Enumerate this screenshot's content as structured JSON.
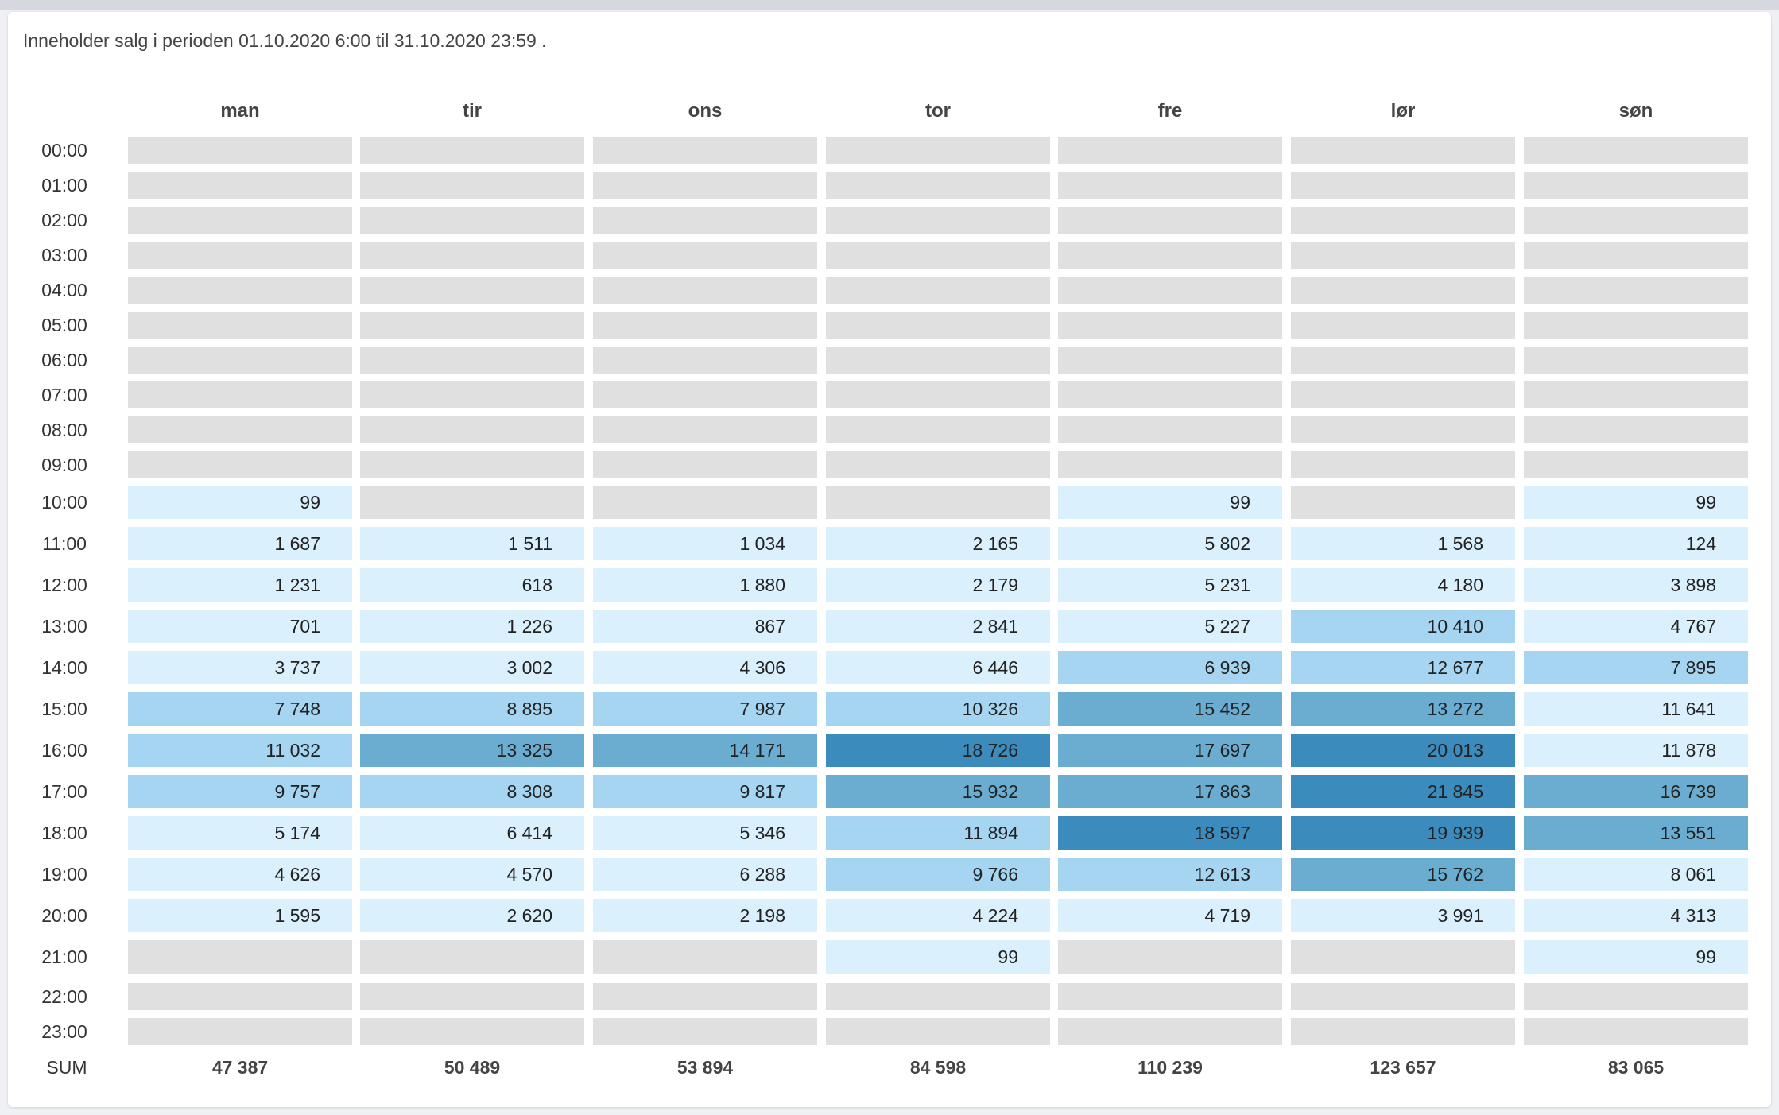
{
  "period_text": "Inneholder salg i perioden 01.10.2020 6:00 til 31.10.2020 23:59 .",
  "colors": {
    "empty": "#e0e0e0",
    "level1": "#daf0fc",
    "level2": "#a6d5f1",
    "level3": "#6bacd1",
    "level4": "#3b8bbc"
  },
  "sum_label": "SUM",
  "chart_data": {
    "type": "heatmap",
    "days": [
      "man",
      "tir",
      "ons",
      "tor",
      "fre",
      "lør",
      "søn"
    ],
    "hours": [
      "00:00",
      "01:00",
      "02:00",
      "03:00",
      "04:00",
      "05:00",
      "06:00",
      "07:00",
      "08:00",
      "09:00",
      "10:00",
      "11:00",
      "12:00",
      "13:00",
      "14:00",
      "15:00",
      "16:00",
      "17:00",
      "18:00",
      "19:00",
      "20:00",
      "21:00",
      "22:00",
      "23:00"
    ],
    "rows": [
      {
        "hour": "00:00",
        "cells": [
          null,
          null,
          null,
          null,
          null,
          null,
          null
        ]
      },
      {
        "hour": "01:00",
        "cells": [
          null,
          null,
          null,
          null,
          null,
          null,
          null
        ]
      },
      {
        "hour": "02:00",
        "cells": [
          null,
          null,
          null,
          null,
          null,
          null,
          null
        ]
      },
      {
        "hour": "03:00",
        "cells": [
          null,
          null,
          null,
          null,
          null,
          null,
          null
        ]
      },
      {
        "hour": "04:00",
        "cells": [
          null,
          null,
          null,
          null,
          null,
          null,
          null
        ]
      },
      {
        "hour": "05:00",
        "cells": [
          null,
          null,
          null,
          null,
          null,
          null,
          null
        ]
      },
      {
        "hour": "06:00",
        "cells": [
          null,
          null,
          null,
          null,
          null,
          null,
          null
        ]
      },
      {
        "hour": "07:00",
        "cells": [
          null,
          null,
          null,
          null,
          null,
          null,
          null
        ]
      },
      {
        "hour": "08:00",
        "cells": [
          null,
          null,
          null,
          null,
          null,
          null,
          null
        ]
      },
      {
        "hour": "09:00",
        "cells": [
          null,
          null,
          null,
          null,
          null,
          null,
          null
        ]
      },
      {
        "hour": "10:00",
        "cells": [
          {
            "text": "99",
            "level": 1
          },
          null,
          null,
          null,
          {
            "text": "99",
            "level": 1
          },
          null,
          {
            "text": "99",
            "level": 1
          }
        ]
      },
      {
        "hour": "11:00",
        "cells": [
          {
            "text": "1 687",
            "level": 1
          },
          {
            "text": "1 511",
            "level": 1
          },
          {
            "text": "1 034",
            "level": 1
          },
          {
            "text": "2 165",
            "level": 1
          },
          {
            "text": "5 802",
            "level": 1
          },
          {
            "text": "1 568",
            "level": 1
          },
          {
            "text": "124",
            "level": 1
          }
        ]
      },
      {
        "hour": "12:00",
        "cells": [
          {
            "text": "1 231",
            "level": 1
          },
          {
            "text": "618",
            "level": 1
          },
          {
            "text": "1 880",
            "level": 1
          },
          {
            "text": "2 179",
            "level": 1
          },
          {
            "text": "5 231",
            "level": 1
          },
          {
            "text": "4 180",
            "level": 1
          },
          {
            "text": "3 898",
            "level": 1
          }
        ]
      },
      {
        "hour": "13:00",
        "cells": [
          {
            "text": "701",
            "level": 1
          },
          {
            "text": "1 226",
            "level": 1
          },
          {
            "text": "867",
            "level": 1
          },
          {
            "text": "2 841",
            "level": 1
          },
          {
            "text": "5 227",
            "level": 1
          },
          {
            "text": "10 410",
            "level": 2
          },
          {
            "text": "4 767",
            "level": 1
          }
        ]
      },
      {
        "hour": "14:00",
        "cells": [
          {
            "text": "3 737",
            "level": 1
          },
          {
            "text": "3 002",
            "level": 1
          },
          {
            "text": "4 306",
            "level": 1
          },
          {
            "text": "6 446",
            "level": 1
          },
          {
            "text": "6 939",
            "level": 2
          },
          {
            "text": "12 677",
            "level": 2
          },
          {
            "text": "7 895",
            "level": 2
          }
        ]
      },
      {
        "hour": "15:00",
        "cells": [
          {
            "text": "7 748",
            "level": 2
          },
          {
            "text": "8 895",
            "level": 2
          },
          {
            "text": "7 987",
            "level": 2
          },
          {
            "text": "10 326",
            "level": 2
          },
          {
            "text": "15 452",
            "level": 3
          },
          {
            "text": "13 272",
            "level": 3
          },
          {
            "text": "11 641",
            "level": 1
          }
        ]
      },
      {
        "hour": "16:00",
        "cells": [
          {
            "text": "11 032",
            "level": 2
          },
          {
            "text": "13 325",
            "level": 3
          },
          {
            "text": "14 171",
            "level": 3
          },
          {
            "text": "18 726",
            "level": 4
          },
          {
            "text": "17 697",
            "level": 3
          },
          {
            "text": "20 013",
            "level": 4
          },
          {
            "text": "11 878",
            "level": 1
          }
        ]
      },
      {
        "hour": "17:00",
        "cells": [
          {
            "text": "9 757",
            "level": 2
          },
          {
            "text": "8 308",
            "level": 2
          },
          {
            "text": "9 817",
            "level": 2
          },
          {
            "text": "15 932",
            "level": 3
          },
          {
            "text": "17 863",
            "level": 3
          },
          {
            "text": "21 845",
            "level": 4
          },
          {
            "text": "16 739",
            "level": 3
          }
        ]
      },
      {
        "hour": "18:00",
        "cells": [
          {
            "text": "5 174",
            "level": 1
          },
          {
            "text": "6 414",
            "level": 1
          },
          {
            "text": "5 346",
            "level": 1
          },
          {
            "text": "11 894",
            "level": 2
          },
          {
            "text": "18 597",
            "level": 4
          },
          {
            "text": "19 939",
            "level": 4
          },
          {
            "text": "13 551",
            "level": 3
          }
        ]
      },
      {
        "hour": "19:00",
        "cells": [
          {
            "text": "4 626",
            "level": 1
          },
          {
            "text": "4 570",
            "level": 1
          },
          {
            "text": "6 288",
            "level": 1
          },
          {
            "text": "9 766",
            "level": 2
          },
          {
            "text": "12 613",
            "level": 2
          },
          {
            "text": "15 762",
            "level": 3
          },
          {
            "text": "8 061",
            "level": 1
          }
        ]
      },
      {
        "hour": "20:00",
        "cells": [
          {
            "text": "1 595",
            "level": 1
          },
          {
            "text": "2 620",
            "level": 1
          },
          {
            "text": "2 198",
            "level": 1
          },
          {
            "text": "4 224",
            "level": 1
          },
          {
            "text": "4 719",
            "level": 1
          },
          {
            "text": "3 991",
            "level": 1
          },
          {
            "text": "4 313",
            "level": 1
          }
        ]
      },
      {
        "hour": "21:00",
        "cells": [
          null,
          null,
          null,
          {
            "text": "99",
            "level": 1
          },
          null,
          null,
          {
            "text": "99",
            "level": 1
          }
        ]
      },
      {
        "hour": "22:00",
        "cells": [
          null,
          null,
          null,
          null,
          null,
          null,
          null
        ]
      },
      {
        "hour": "23:00",
        "cells": [
          null,
          null,
          null,
          null,
          null,
          null,
          null
        ]
      }
    ],
    "sums": [
      "47 387",
      "50 489",
      "53 894",
      "84 598",
      "110 239",
      "123 657",
      "83 065"
    ]
  }
}
